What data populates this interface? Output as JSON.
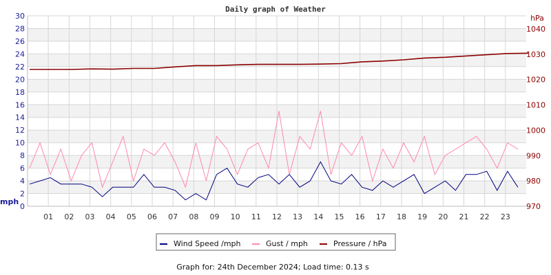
{
  "chart_data": {
    "type": "line",
    "title": "Daily graph of Weather",
    "left_axis": {
      "label": "mph",
      "range": [
        0,
        30
      ],
      "ticks": [
        0,
        2,
        4,
        6,
        8,
        10,
        12,
        14,
        16,
        18,
        20,
        22,
        24,
        26,
        28,
        30
      ],
      "color": "#1a1a99"
    },
    "right_axis": {
      "label": "hPa",
      "range": [
        970,
        1040
      ],
      "ticks": [
        970,
        980,
        990,
        1000,
        1010,
        1020,
        1030,
        1040
      ],
      "color": "#8b0000"
    },
    "x_ticks": [
      "01",
      "02",
      "03",
      "04",
      "05",
      "06",
      "07",
      "08",
      "09",
      "10",
      "11",
      "12",
      "13",
      "14",
      "15",
      "16",
      "17",
      "18",
      "19",
      "20",
      "21",
      "22",
      "23"
    ],
    "x_range_hours": [
      0,
      24
    ],
    "grid": true,
    "legend_position": "bottom",
    "series": [
      {
        "name": "Wind Speed /mph",
        "color": "#000080",
        "axis": "left",
        "x_step_hours": 0.5,
        "values": [
          3.5,
          4,
          4.5,
          3.5,
          3.5,
          3.5,
          3,
          1.5,
          3,
          3,
          3,
          5,
          3,
          3,
          2.5,
          1,
          2,
          1,
          5,
          6,
          3.5,
          3,
          4.5,
          5,
          3.5,
          5,
          3,
          4,
          7,
          4,
          3.5,
          5,
          3,
          2.5,
          4,
          3,
          4,
          5,
          2,
          3,
          4,
          2.5,
          5,
          5,
          5.5,
          2.5,
          5.5,
          3
        ]
      },
      {
        "name": "Gust / mph",
        "color": "#ff88aa",
        "axis": "left",
        "x_step_hours": 0.5,
        "values": [
          6,
          10,
          5,
          9,
          4,
          8,
          10,
          3,
          7,
          11,
          4,
          9,
          8,
          10,
          7,
          3,
          10,
          4,
          11,
          9,
          5,
          9,
          10,
          6,
          15,
          5,
          11,
          9,
          15,
          5,
          10,
          8,
          11,
          4,
          9,
          6,
          10,
          7,
          11,
          5,
          8,
          9,
          10,
          11,
          9,
          6,
          10,
          9
        ]
      },
      {
        "name": "Pressure / hPa",
        "color": "#8b0000",
        "axis": "right",
        "x_step_hours": 1,
        "values": [
          1024,
          1024,
          1024,
          1024.2,
          1024.1,
          1024.4,
          1024.4,
          1025,
          1025.5,
          1025.5,
          1025.8,
          1026,
          1026,
          1026,
          1026.1,
          1026.3,
          1027,
          1027.3,
          1027.8,
          1028.5,
          1028.8,
          1029.3,
          1029.8,
          1030.3,
          1030.4
        ]
      }
    ]
  },
  "footer": "Graph for: 24th December 2024; Load time: 0.13 s"
}
